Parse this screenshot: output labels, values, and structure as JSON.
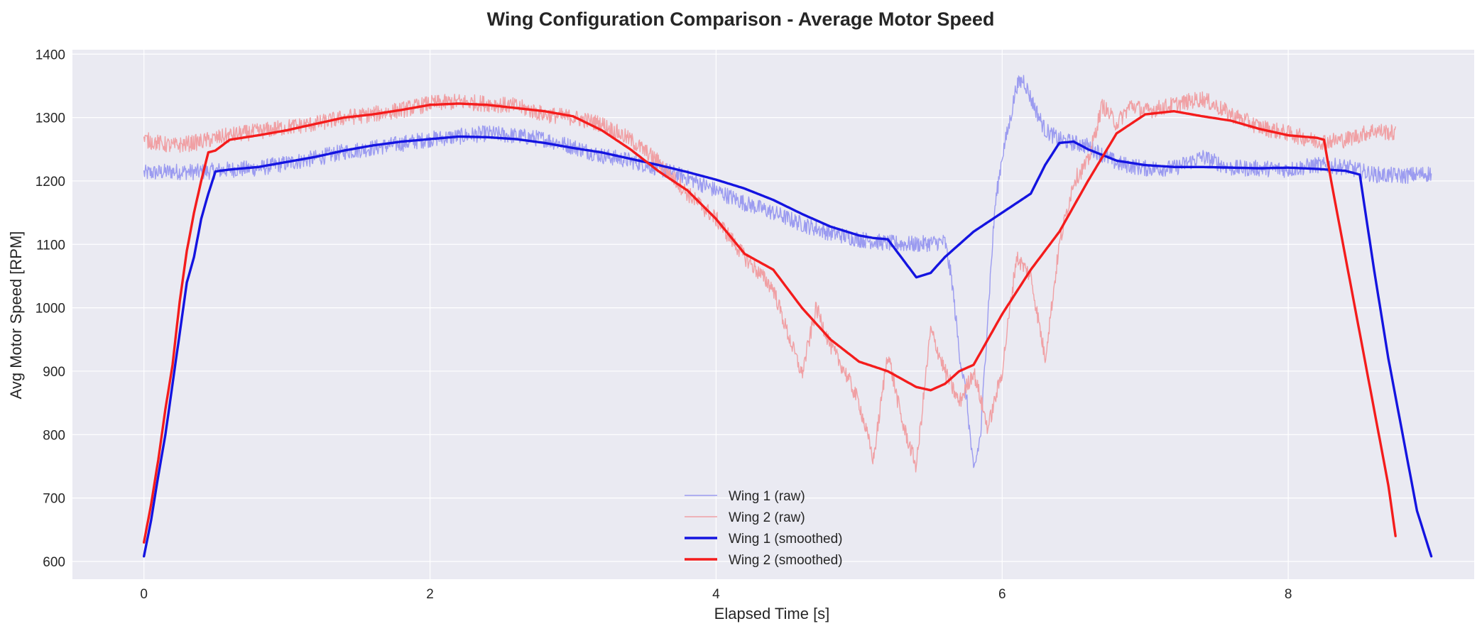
{
  "chart_data": {
    "type": "line",
    "title": "Wing Configuration Comparison - Average Motor Speed",
    "xlabel": "Elapsed Time [s]",
    "ylabel": "Avg Motor Speed [RPM]",
    "xlim": [
      -0.5,
      9.3
    ],
    "ylim": [
      572,
      1407
    ],
    "xticks": [
      0,
      2,
      4,
      6,
      8
    ],
    "yticks": [
      600,
      700,
      800,
      900,
      1000,
      1100,
      1200,
      1300,
      1400
    ],
    "grid": true,
    "legend": "lower-center",
    "colors": {
      "background": "#eaeaf2",
      "grid": "#ffffff",
      "wing1_raw": "#9b9bf0",
      "wing2_raw": "#f0a0a4",
      "wing1_smoothed": "#1414e0",
      "wing2_smoothed": "#f41c1c"
    },
    "series": [
      {
        "name": "Wing 1 (raw)",
        "style": "raw",
        "color": "#9b9bf0",
        "x": [
          0,
          0.2,
          0.4,
          0.6,
          0.8,
          1.0,
          1.2,
          1.4,
          1.6,
          1.8,
          2.0,
          2.2,
          2.4,
          2.6,
          2.8,
          3.0,
          3.2,
          3.4,
          3.6,
          3.8,
          4.0,
          4.2,
          4.4,
          4.6,
          4.8,
          5.0,
          5.2,
          5.4,
          5.6,
          5.65,
          5.7,
          5.75,
          5.8,
          5.85,
          5.9,
          5.95,
          6.0,
          6.05,
          6.1,
          6.15,
          6.2,
          6.3,
          6.4,
          6.6,
          6.8,
          7.0,
          7.2,
          7.4,
          7.6,
          7.8,
          8.0,
          8.2,
          8.4,
          8.6,
          8.8,
          9.0
        ],
        "y": [
          1212,
          1215,
          1214,
          1218,
          1220,
          1228,
          1236,
          1246,
          1252,
          1259,
          1266,
          1270,
          1275,
          1271,
          1266,
          1254,
          1240,
          1232,
          1220,
          1205,
          1185,
          1165,
          1150,
          1132,
          1118,
          1108,
          1102,
          1100,
          1104,
          1040,
          930,
          860,
          740,
          800,
          990,
          1160,
          1240,
          1290,
          1350,
          1360,
          1330,
          1280,
          1265,
          1255,
          1228,
          1220,
          1220,
          1238,
          1220,
          1220,
          1218,
          1225,
          1222,
          1210,
          1208,
          1212
        ]
      },
      {
        "name": "Wing 2 (raw)",
        "style": "raw",
        "color": "#f0a0a4",
        "x": [
          0,
          0.2,
          0.4,
          0.6,
          0.8,
          1.0,
          1.2,
          1.4,
          1.6,
          1.8,
          2.0,
          2.2,
          2.4,
          2.6,
          2.8,
          3.0,
          3.2,
          3.4,
          3.6,
          3.8,
          4.0,
          4.2,
          4.4,
          4.5,
          4.6,
          4.7,
          4.8,
          4.9,
          5.0,
          5.1,
          5.2,
          5.3,
          5.4,
          5.5,
          5.6,
          5.7,
          5.8,
          5.9,
          6.0,
          6.1,
          6.2,
          6.3,
          6.4,
          6.5,
          6.6,
          6.7,
          6.8,
          6.9,
          7.0,
          7.2,
          7.4,
          7.6,
          7.8,
          8.0,
          8.2,
          8.4,
          8.6,
          8.75
        ],
        "y": [
          1265,
          1255,
          1262,
          1272,
          1278,
          1285,
          1290,
          1300,
          1305,
          1312,
          1322,
          1325,
          1322,
          1318,
          1305,
          1300,
          1290,
          1265,
          1230,
          1180,
          1140,
          1080,
          1030,
          960,
          895,
          1000,
          940,
          900,
          850,
          760,
          930,
          820,
          750,
          965,
          900,
          850,
          900,
          810,
          900,
          1080,
          1050,
          920,
          1100,
          1200,
          1230,
          1320,
          1290,
          1320,
          1310,
          1320,
          1330,
          1305,
          1285,
          1275,
          1262,
          1265,
          1280,
          1275
        ]
      },
      {
        "name": "Wing 1 (smoothed)",
        "style": "smoothed",
        "color": "#1414e0",
        "x": [
          0,
          0.05,
          0.1,
          0.15,
          0.2,
          0.25,
          0.3,
          0.35,
          0.4,
          0.45,
          0.5,
          0.6,
          0.8,
          1.0,
          1.2,
          1.4,
          1.6,
          1.8,
          2.0,
          2.2,
          2.4,
          2.6,
          2.8,
          3.0,
          3.2,
          3.4,
          3.6,
          3.8,
          4.0,
          4.2,
          4.4,
          4.6,
          4.8,
          5.0,
          5.1,
          5.2,
          5.3,
          5.4,
          5.5,
          5.6,
          5.8,
          6.0,
          6.2,
          6.3,
          6.4,
          6.5,
          6.6,
          6.8,
          7.0,
          7.2,
          7.4,
          7.6,
          7.8,
          8.0,
          8.2,
          8.4,
          8.5,
          8.6,
          8.7,
          8.8,
          8.9,
          9.0
        ],
        "y": [
          608,
          665,
          735,
          800,
          880,
          960,
          1040,
          1080,
          1140,
          1180,
          1215,
          1218,
          1222,
          1230,
          1238,
          1248,
          1256,
          1262,
          1266,
          1270,
          1269,
          1266,
          1260,
          1252,
          1245,
          1235,
          1225,
          1214,
          1202,
          1188,
          1170,
          1148,
          1128,
          1114,
          1110,
          1108,
          1078,
          1048,
          1055,
          1080,
          1120,
          1150,
          1180,
          1225,
          1260,
          1262,
          1250,
          1232,
          1225,
          1222,
          1222,
          1221,
          1220,
          1221,
          1219,
          1216,
          1210,
          1060,
          920,
          800,
          680,
          608
        ]
      },
      {
        "name": "Wing 2 (smoothed)",
        "style": "smoothed",
        "color": "#f41c1c",
        "x": [
          0,
          0.05,
          0.1,
          0.15,
          0.2,
          0.25,
          0.3,
          0.35,
          0.4,
          0.45,
          0.5,
          0.6,
          0.8,
          1.0,
          1.2,
          1.4,
          1.6,
          1.8,
          2.0,
          2.2,
          2.4,
          2.6,
          2.8,
          3.0,
          3.2,
          3.4,
          3.6,
          3.8,
          4.0,
          4.2,
          4.4,
          4.6,
          4.8,
          5.0,
          5.2,
          5.4,
          5.5,
          5.6,
          5.7,
          5.8,
          6.0,
          6.2,
          6.4,
          6.6,
          6.8,
          7.0,
          7.2,
          7.4,
          7.6,
          7.8,
          8.0,
          8.2,
          8.25,
          8.3,
          8.4,
          8.5,
          8.6,
          8.7,
          8.75
        ],
        "y": [
          630,
          690,
          760,
          840,
          910,
          1010,
          1090,
          1150,
          1200,
          1245,
          1248,
          1265,
          1272,
          1280,
          1290,
          1300,
          1305,
          1312,
          1320,
          1322,
          1320,
          1315,
          1310,
          1302,
          1280,
          1250,
          1215,
          1185,
          1140,
          1085,
          1060,
          1000,
          950,
          915,
          900,
          875,
          870,
          880,
          900,
          910,
          990,
          1060,
          1120,
          1200,
          1275,
          1305,
          1310,
          1302,
          1295,
          1282,
          1272,
          1268,
          1265,
          1200,
          1080,
          960,
          840,
          720,
          640
        ]
      }
    ]
  }
}
